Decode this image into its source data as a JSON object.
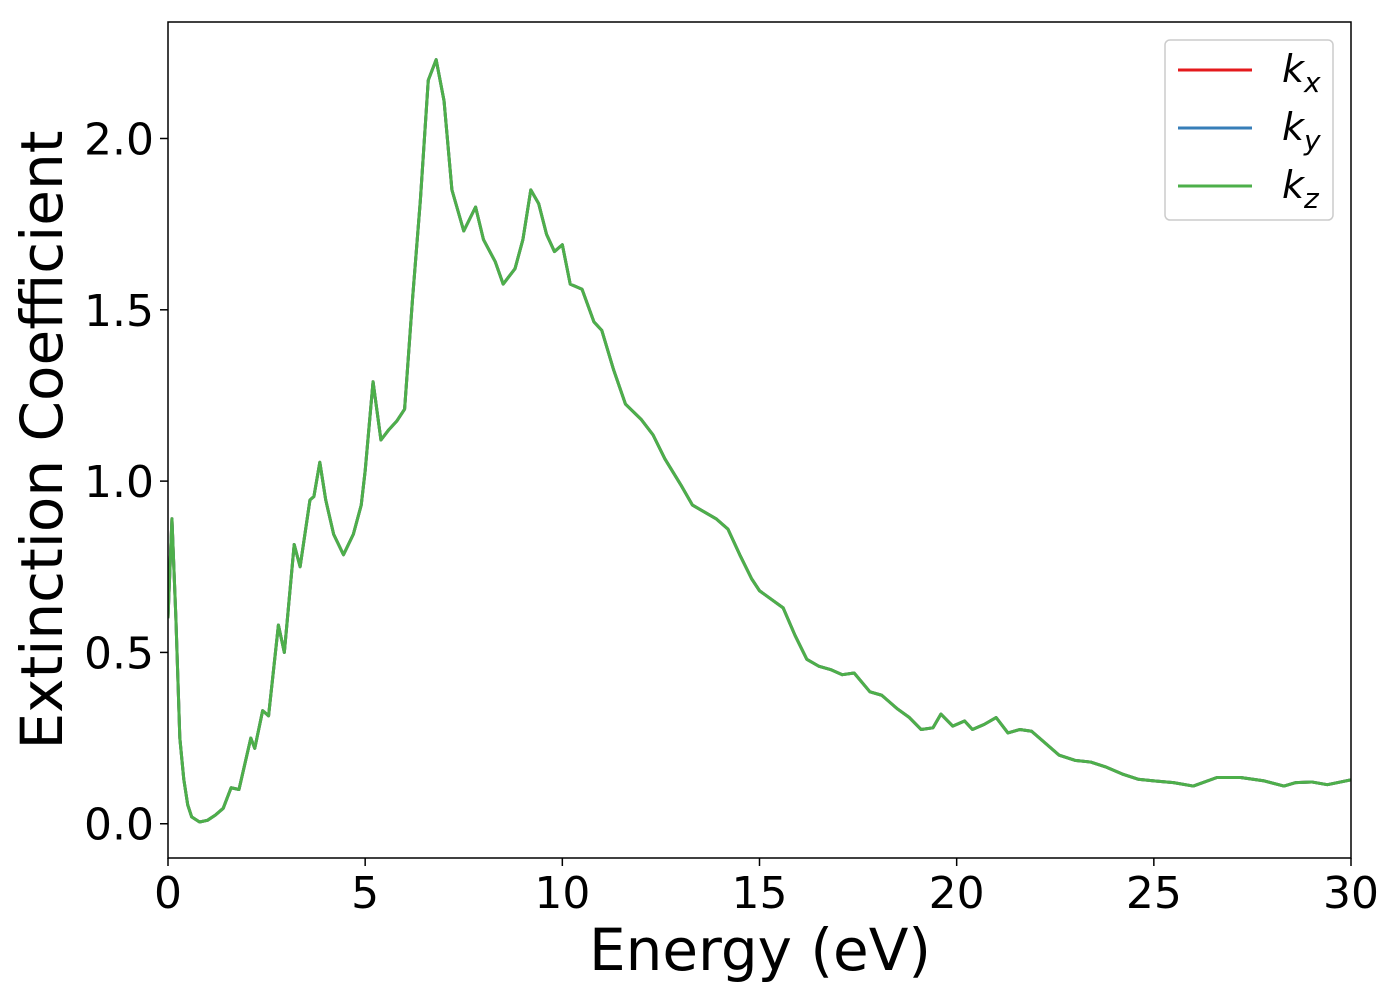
{
  "chart_data": {
    "type": "line",
    "xlabel": "Energy (eV)",
    "ylabel": "Extinction Coefficient",
    "x": [
      0,
      0.1,
      0.2,
      0.3,
      0.4,
      0.5,
      0.6,
      0.8,
      1.0,
      1.2,
      1.4,
      1.6,
      1.8,
      2.1,
      2.2,
      2.4,
      2.55,
      2.8,
      2.95,
      3.2,
      3.35,
      3.6,
      3.7,
      3.85,
      4.0,
      4.2,
      4.45,
      4.7,
      4.9,
      5.0,
      5.2,
      5.4,
      5.6,
      5.8,
      6.0,
      6.2,
      6.4,
      6.6,
      6.8,
      7.0,
      7.2,
      7.5,
      7.8,
      8.0,
      8.3,
      8.5,
      8.8,
      9.0,
      9.2,
      9.4,
      9.6,
      9.8,
      10.0,
      10.2,
      10.5,
      10.8,
      11.0,
      11.3,
      11.6,
      12.0,
      12.3,
      12.6,
      13.0,
      13.3,
      13.6,
      13.9,
      14.2,
      14.5,
      14.8,
      15.0,
      15.3,
      15.6,
      15.9,
      16.2,
      16.5,
      16.8,
      17.1,
      17.4,
      17.8,
      18.1,
      18.5,
      18.8,
      19.1,
      19.4,
      19.6,
      19.9,
      20.2,
      20.4,
      20.7,
      21.0,
      21.3,
      21.6,
      21.9,
      22.2,
      22.6,
      23.0,
      23.4,
      23.8,
      24.2,
      24.6,
      25.0,
      25.5,
      26.0,
      26.6,
      27.2,
      27.8,
      28.3,
      28.6,
      29.0,
      29.4,
      30.0
    ],
    "series": [
      {
        "name": "kx",
        "color": "#e41a1c",
        "values": [
          0.6,
          0.89,
          0.6,
          0.25,
          0.13,
          0.055,
          0.02,
          0.005,
          0.01,
          0.025,
          0.045,
          0.105,
          0.1,
          0.25,
          0.22,
          0.33,
          0.315,
          0.58,
          0.5,
          0.815,
          0.75,
          0.945,
          0.955,
          1.055,
          0.945,
          0.845,
          0.785,
          0.845,
          0.93,
          1.03,
          1.29,
          1.12,
          1.15,
          1.175,
          1.21,
          1.53,
          1.82,
          2.17,
          2.23,
          2.11,
          1.85,
          1.73,
          1.8,
          1.705,
          1.64,
          1.575,
          1.62,
          1.705,
          1.85,
          1.81,
          1.72,
          1.67,
          1.69,
          1.575,
          1.56,
          1.465,
          1.44,
          1.325,
          1.225,
          1.18,
          1.135,
          1.065,
          0.99,
          0.93,
          0.91,
          0.89,
          0.86,
          0.785,
          0.715,
          0.68,
          0.655,
          0.63,
          0.55,
          0.48,
          0.46,
          0.45,
          0.435,
          0.44,
          0.385,
          0.375,
          0.335,
          0.31,
          0.275,
          0.28,
          0.32,
          0.285,
          0.3,
          0.275,
          0.29,
          0.31,
          0.265,
          0.275,
          0.27,
          0.24,
          0.2,
          0.185,
          0.18,
          0.165,
          0.145,
          0.13,
          0.125,
          0.12,
          0.11,
          0.135,
          0.135,
          0.125,
          0.11,
          0.12,
          0.122,
          0.114,
          0.128
        ]
      },
      {
        "name": "ky",
        "color": "#377eb8",
        "values": [
          0.6,
          0.89,
          0.6,
          0.25,
          0.13,
          0.055,
          0.02,
          0.005,
          0.01,
          0.025,
          0.045,
          0.105,
          0.1,
          0.25,
          0.22,
          0.33,
          0.315,
          0.58,
          0.5,
          0.815,
          0.75,
          0.945,
          0.955,
          1.055,
          0.945,
          0.845,
          0.785,
          0.845,
          0.93,
          1.03,
          1.29,
          1.12,
          1.15,
          1.175,
          1.21,
          1.53,
          1.82,
          2.17,
          2.23,
          2.11,
          1.85,
          1.73,
          1.8,
          1.705,
          1.64,
          1.575,
          1.62,
          1.705,
          1.85,
          1.81,
          1.72,
          1.67,
          1.69,
          1.575,
          1.56,
          1.465,
          1.44,
          1.325,
          1.225,
          1.18,
          1.135,
          1.065,
          0.99,
          0.93,
          0.91,
          0.89,
          0.86,
          0.785,
          0.715,
          0.68,
          0.655,
          0.63,
          0.55,
          0.48,
          0.46,
          0.45,
          0.435,
          0.44,
          0.385,
          0.375,
          0.335,
          0.31,
          0.275,
          0.28,
          0.32,
          0.285,
          0.3,
          0.275,
          0.29,
          0.31,
          0.265,
          0.275,
          0.27,
          0.24,
          0.2,
          0.185,
          0.18,
          0.165,
          0.145,
          0.13,
          0.125,
          0.12,
          0.11,
          0.135,
          0.135,
          0.125,
          0.11,
          0.12,
          0.122,
          0.114,
          0.128
        ]
      },
      {
        "name": "kz",
        "color": "#4daf4a",
        "values": [
          0.6,
          0.89,
          0.6,
          0.25,
          0.13,
          0.055,
          0.02,
          0.005,
          0.01,
          0.025,
          0.045,
          0.105,
          0.1,
          0.25,
          0.22,
          0.33,
          0.315,
          0.58,
          0.5,
          0.815,
          0.75,
          0.945,
          0.955,
          1.055,
          0.945,
          0.845,
          0.785,
          0.845,
          0.93,
          1.03,
          1.29,
          1.12,
          1.15,
          1.175,
          1.21,
          1.53,
          1.82,
          2.17,
          2.23,
          2.11,
          1.85,
          1.73,
          1.8,
          1.705,
          1.64,
          1.575,
          1.62,
          1.705,
          1.85,
          1.81,
          1.72,
          1.67,
          1.69,
          1.575,
          1.56,
          1.465,
          1.44,
          1.325,
          1.225,
          1.18,
          1.135,
          1.065,
          0.99,
          0.93,
          0.91,
          0.89,
          0.86,
          0.785,
          0.715,
          0.68,
          0.655,
          0.63,
          0.55,
          0.48,
          0.46,
          0.45,
          0.435,
          0.44,
          0.385,
          0.375,
          0.335,
          0.31,
          0.275,
          0.28,
          0.32,
          0.285,
          0.3,
          0.275,
          0.29,
          0.31,
          0.265,
          0.275,
          0.27,
          0.24,
          0.2,
          0.185,
          0.18,
          0.165,
          0.145,
          0.13,
          0.125,
          0.12,
          0.11,
          0.135,
          0.135,
          0.125,
          0.11,
          0.12,
          0.122,
          0.114,
          0.128
        ]
      }
    ],
    "xlim": [
      0,
      30
    ],
    "xticks": [
      0,
      5,
      10,
      15,
      20,
      25,
      30
    ],
    "ylim": [
      -0.1,
      2.34
    ],
    "yticks": [
      {
        "value": 0,
        "label": "0.0"
      },
      {
        "value": 0.5,
        "label": "0.5"
      },
      {
        "value": 1,
        "label": "1.0"
      },
      {
        "value": 1.5,
        "label": "1.5"
      },
      {
        "value": 2,
        "label": "2.0"
      }
    ],
    "legend": "upper right",
    "grid": false
  }
}
